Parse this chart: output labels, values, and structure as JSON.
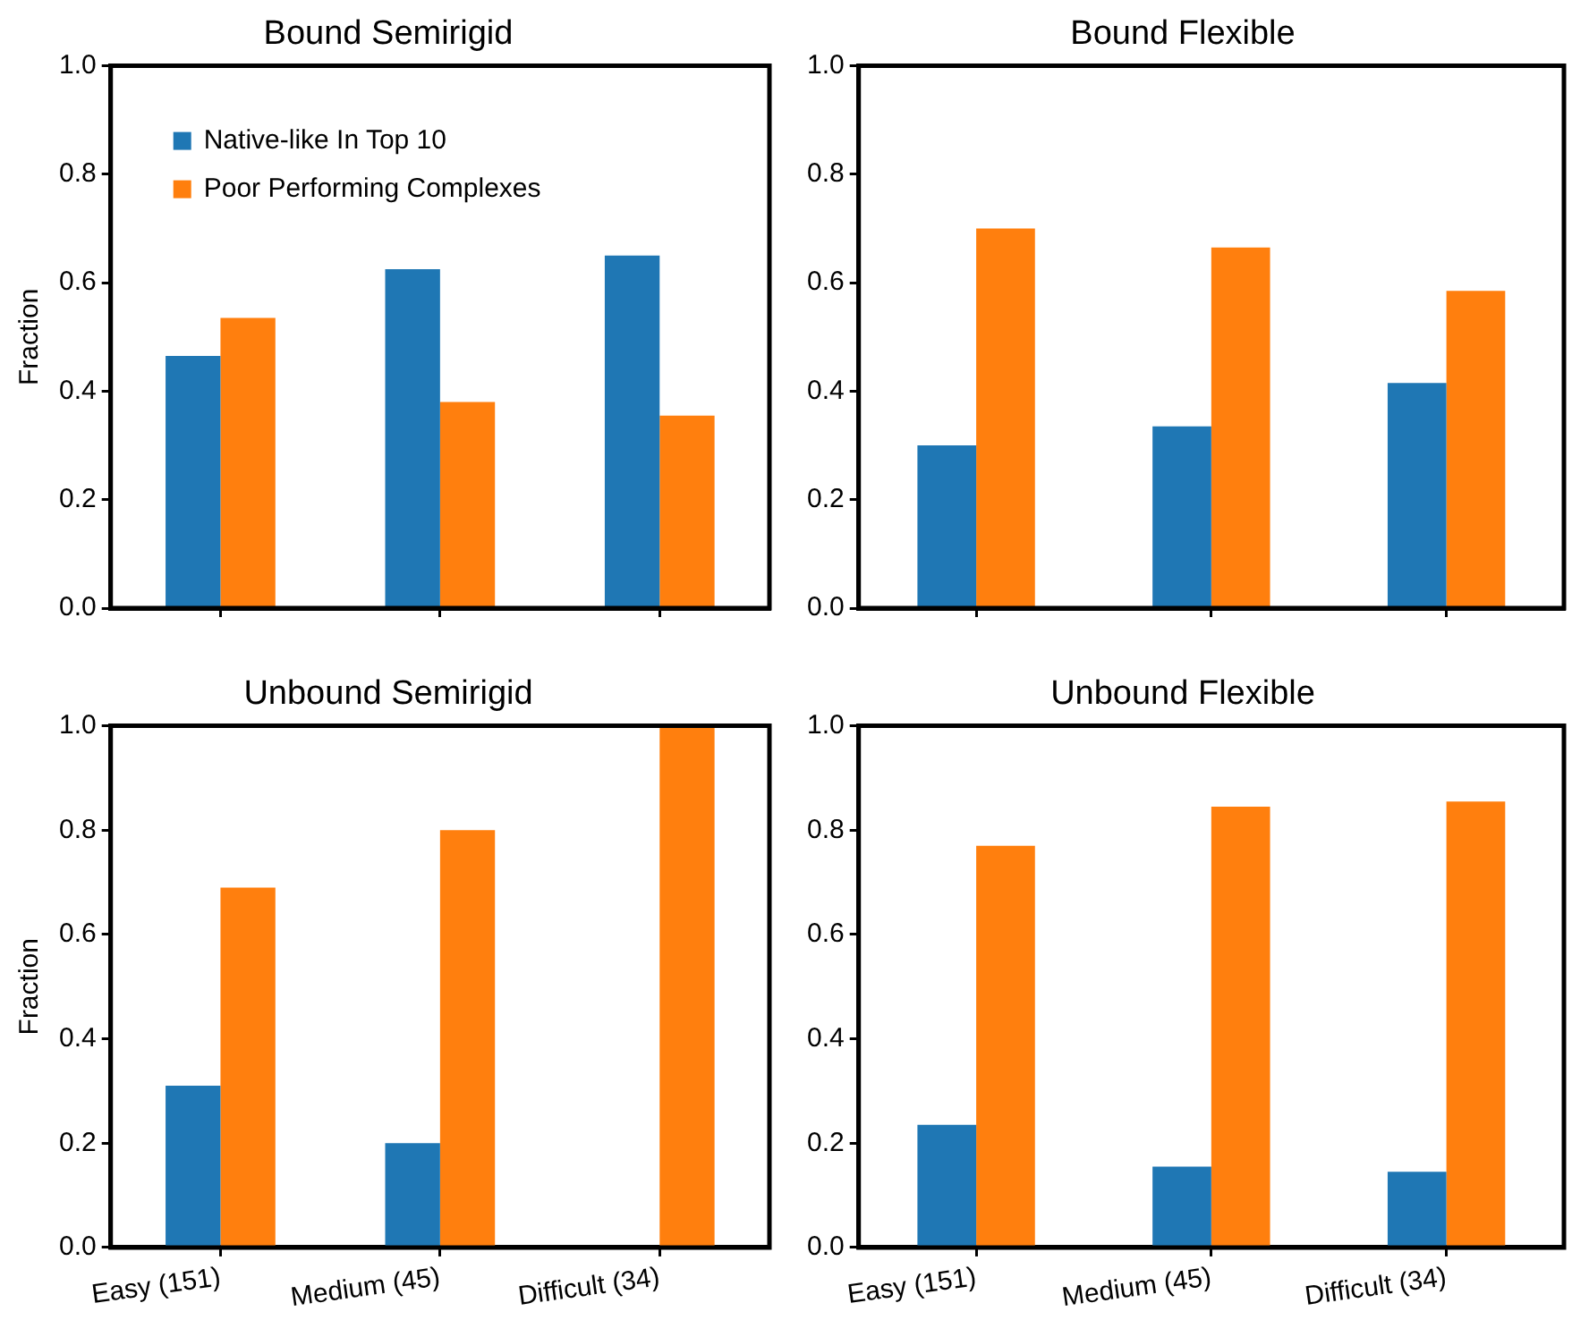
{
  "chart_data": [
    {
      "type": "bar",
      "title": "Bound Semirigid",
      "ylabel": "Fraction",
      "categories": [
        null,
        null,
        null
      ],
      "tick_labels": "y",
      "legend": "top left",
      "grid": false,
      "ylim": [
        0,
        1
      ],
      "yticks": [
        {
          "value": 0,
          "label": "0.0"
        },
        {
          "value": 0.2,
          "label": "0.2"
        },
        {
          "value": 0.4,
          "label": "0.4"
        },
        {
          "value": 0.6,
          "label": "0.6"
        },
        {
          "value": 0.8,
          "label": "0.8"
        },
        {
          "value": 1,
          "label": "1.0"
        }
      ],
      "series": [
        {
          "name": "Native-like In Top 10",
          "color": "#1f77b4",
          "values": [
            0.465,
            0.625,
            0.65
          ]
        },
        {
          "name": "Poor Performing Complexes",
          "color": "#ff7f0e",
          "values": [
            0.535,
            0.38,
            0.355
          ]
        }
      ]
    },
    {
      "type": "bar",
      "title": "Bound Flexible",
      "categories": [
        null,
        null,
        null
      ],
      "tick_labels": "y",
      "grid": false,
      "ylim": [
        0,
        1
      ],
      "yticks": [
        {
          "value": 0,
          "label": "0.0"
        },
        {
          "value": 0.2,
          "label": "0.2"
        },
        {
          "value": 0.4,
          "label": "0.4"
        },
        {
          "value": 0.6,
          "label": "0.6"
        },
        {
          "value": 0.8,
          "label": "0.8"
        },
        {
          "value": 1,
          "label": "1.0"
        }
      ],
      "series": [
        {
          "color": "#1f77b4",
          "values": [
            0.3,
            0.335,
            0.415
          ]
        },
        {
          "color": "#ff7f0e",
          "values": [
            0.7,
            0.665,
            0.585
          ]
        }
      ]
    },
    {
      "type": "bar",
      "title": "Unbound Semirigid",
      "ylabel": "Fraction",
      "categories": [
        "Easy (151)",
        "Medium (45)",
        "Difficult (34)"
      ],
      "grid": false,
      "ylim": [
        0,
        1
      ],
      "yticks": [
        {
          "value": 0,
          "label": "0.0"
        },
        {
          "value": 0.2,
          "label": "0.2"
        },
        {
          "value": 0.4,
          "label": "0.4"
        },
        {
          "value": 0.6,
          "label": "0.6"
        },
        {
          "value": 0.8,
          "label": "0.8"
        },
        {
          "value": 1,
          "label": "1.0"
        }
      ],
      "series": [
        {
          "color": "#1f77b4",
          "values": [
            0.31,
            0.2,
            0
          ]
        },
        {
          "color": "#ff7f0e",
          "values": [
            0.69,
            0.8,
            1.0
          ]
        }
      ]
    },
    {
      "type": "bar",
      "title": "Unbound Flexible",
      "categories": [
        "Easy (151)",
        "Medium (45)",
        "Difficult (34)"
      ],
      "grid": false,
      "ylim": [
        0,
        1
      ],
      "yticks": [
        {
          "value": 0,
          "label": "0.0"
        },
        {
          "value": 0.2,
          "label": "0.2"
        },
        {
          "value": 0.4,
          "label": "0.4"
        },
        {
          "value": 0.6,
          "label": "0.6"
        },
        {
          "value": 0.8,
          "label": "0.8"
        },
        {
          "value": 1,
          "label": "1.0"
        }
      ],
      "series": [
        {
          "color": "#1f77b4",
          "values": [
            0.235,
            0.155,
            0.145
          ]
        },
        {
          "color": "#ff7f0e",
          "values": [
            0.77,
            0.845,
            0.855
          ]
        }
      ]
    }
  ]
}
